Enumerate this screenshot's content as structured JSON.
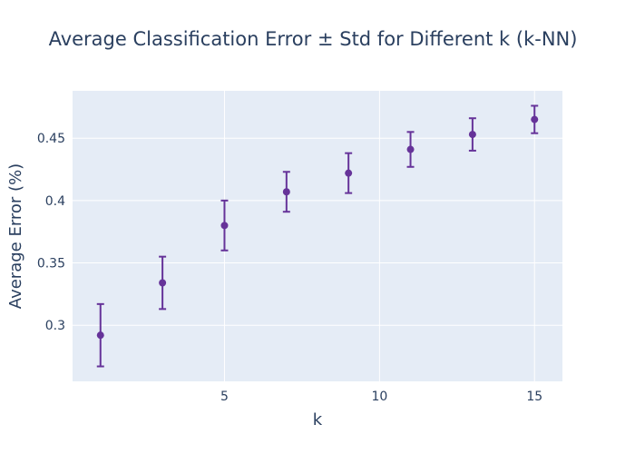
{
  "colors": {
    "plot_bg": "#e5ecf6",
    "grid": "#ffffff",
    "text": "#2a3f5f",
    "marker": "#663399"
  },
  "chart_data": {
    "type": "scatter",
    "title": "Average Classification Error ± Std for Different k (k-NN)",
    "xlabel": "k",
    "ylabel": "Average Error (%)",
    "xlim": [
      0.1,
      15.9
    ],
    "ylim": [
      0.255,
      0.488
    ],
    "x_ticks": [
      5,
      10,
      15
    ],
    "y_ticks": [
      0.3,
      0.35,
      0.4,
      0.45
    ],
    "x_tick_labels": [
      "5",
      "10",
      "15"
    ],
    "y_tick_labels": [
      "0.3",
      "0.35",
      "0.4",
      "0.45"
    ],
    "grid": true,
    "legend": "none",
    "series": [
      {
        "color": "#663399",
        "x": [
          1,
          3,
          5,
          7,
          9,
          11,
          13,
          15
        ],
        "y": [
          0.292,
          0.334,
          0.38,
          0.407,
          0.422,
          0.441,
          0.453,
          0.465
        ],
        "error": [
          0.025,
          0.021,
          0.02,
          0.016,
          0.016,
          0.014,
          0.013,
          0.011
        ]
      }
    ]
  }
}
